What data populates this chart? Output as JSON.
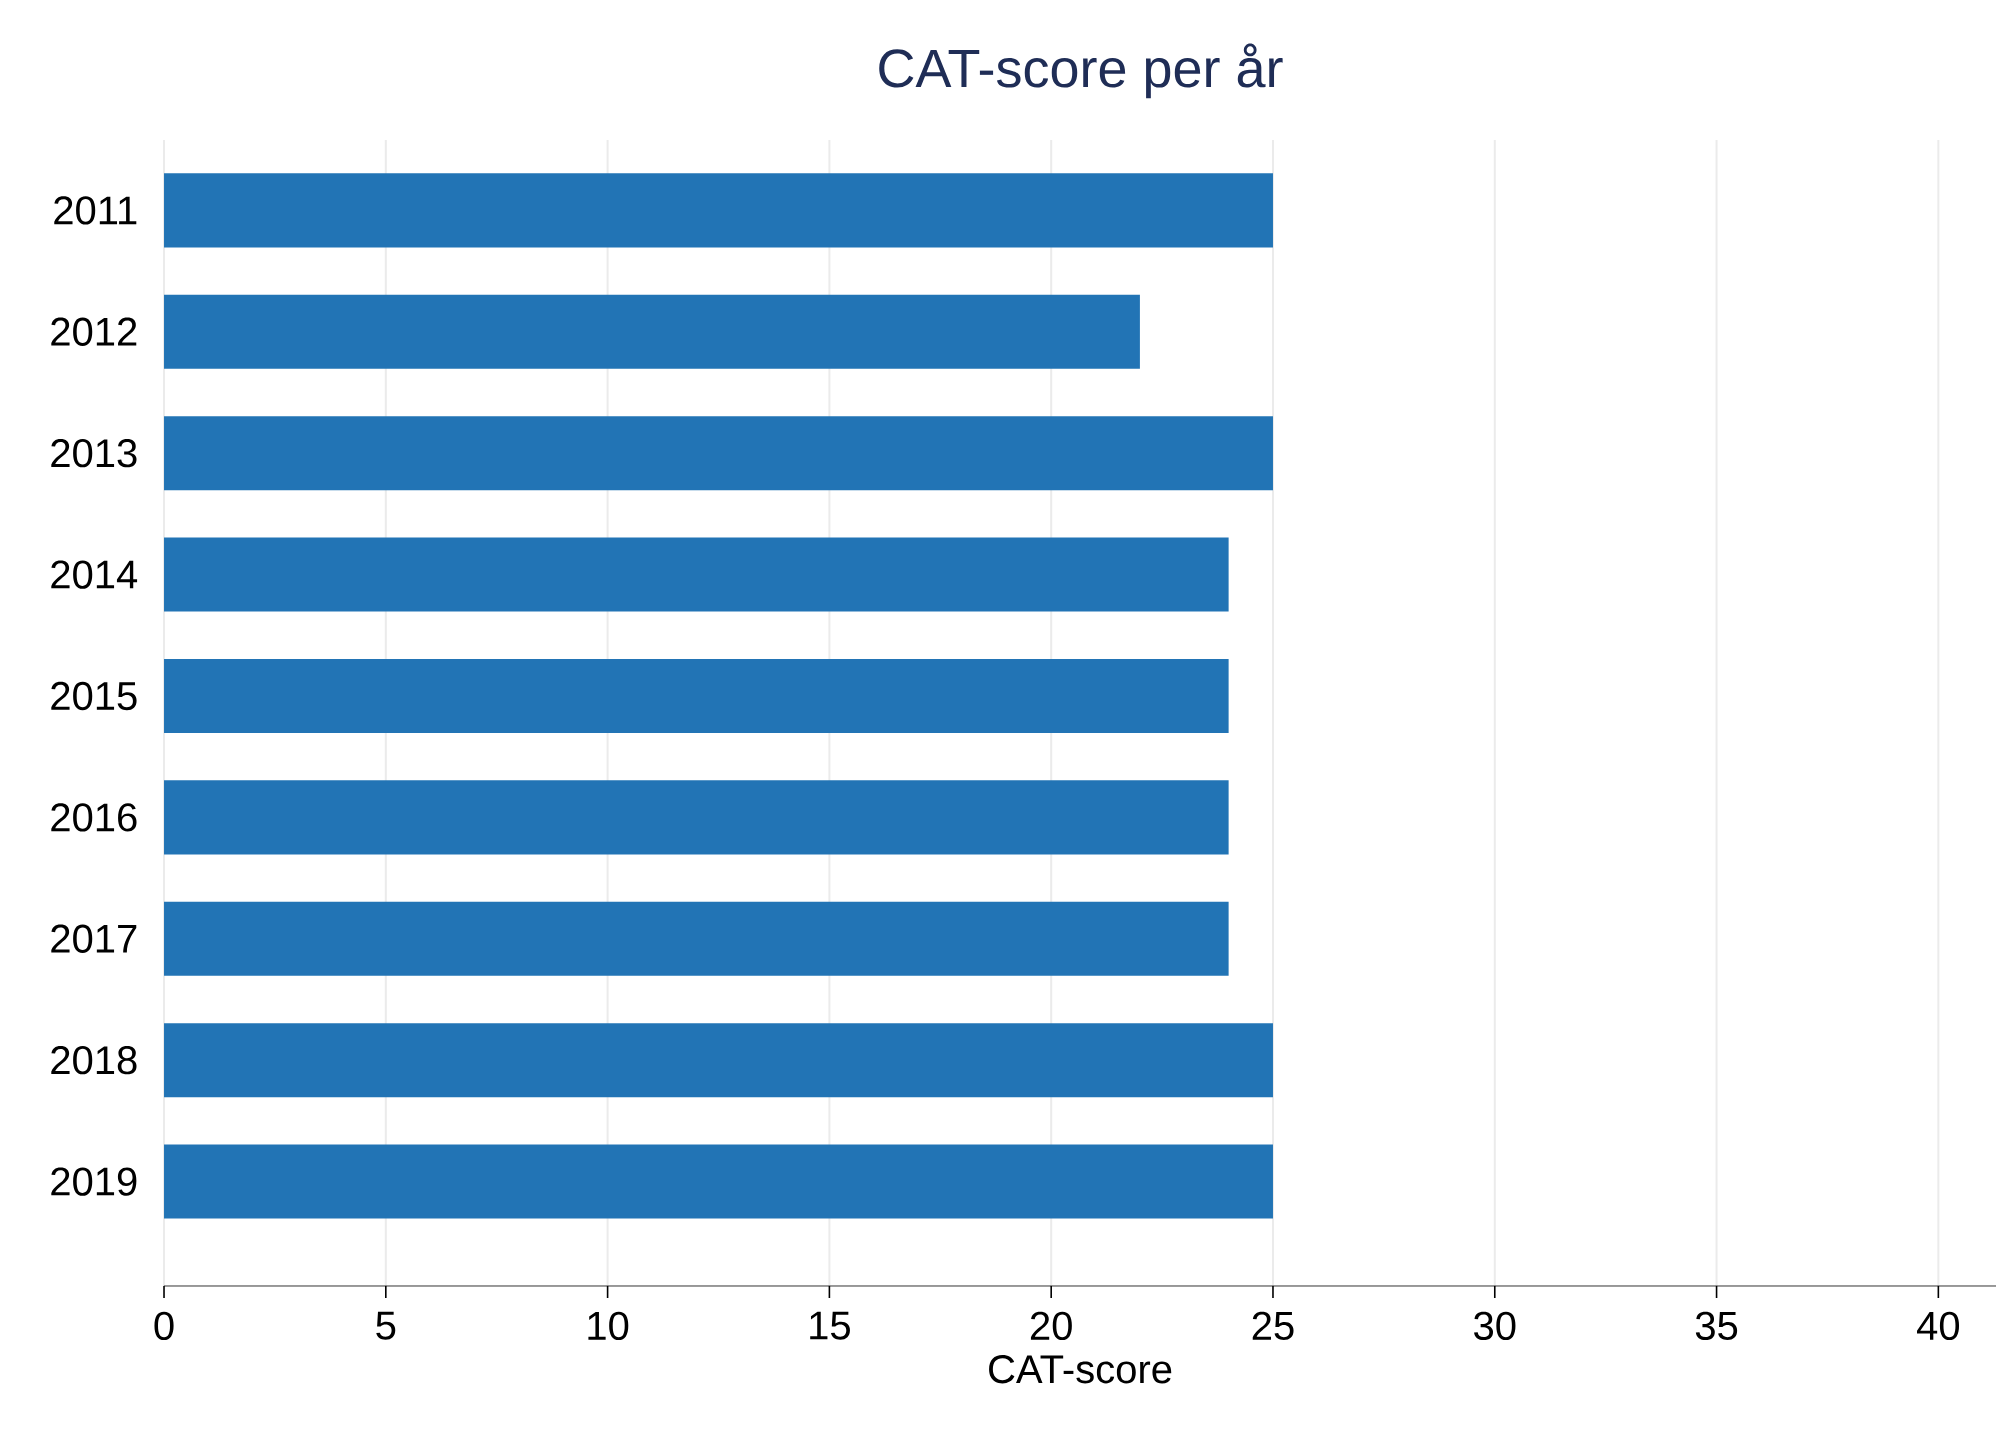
{
  "chart_data": {
    "type": "bar",
    "orientation": "horizontal",
    "title": "CAT-score per år",
    "xlabel": "CAT-score",
    "categories": [
      "2011",
      "2012",
      "2013",
      "2014",
      "2015",
      "2016",
      "2017",
      "2018",
      "2019"
    ],
    "values": [
      25,
      22,
      25,
      24,
      24,
      24,
      24,
      25,
      25
    ],
    "color": "#2274b5",
    "xlim": [
      0,
      41.3
    ],
    "xticks": [
      0,
      5,
      10,
      15,
      20,
      25,
      30,
      35,
      40
    ],
    "grid": "x"
  }
}
